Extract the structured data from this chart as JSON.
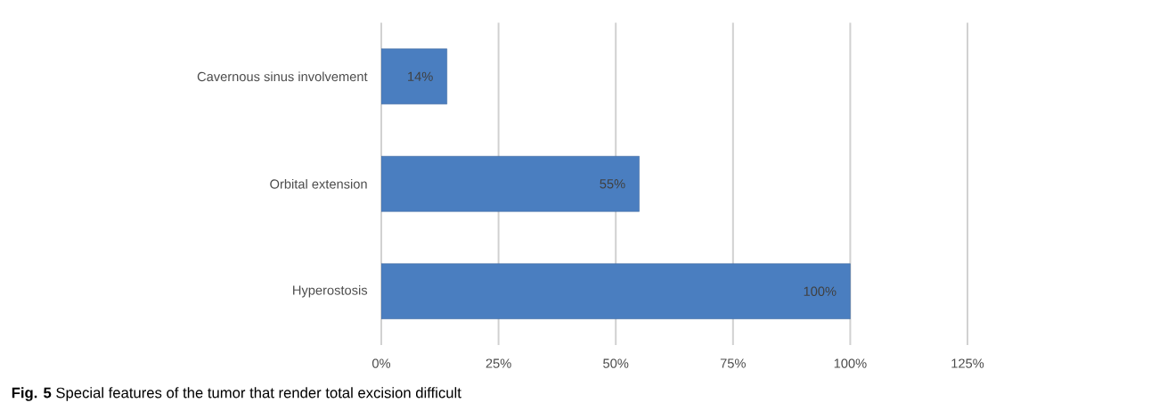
{
  "chart_data": {
    "type": "bar",
    "orientation": "horizontal",
    "categories": [
      "Cavernous sinus involvement",
      "Orbital extension",
      "Hyperostosis"
    ],
    "values": [
      14,
      55,
      100
    ],
    "value_labels": [
      "14%",
      "55%",
      "100%"
    ],
    "color": "#4a7ec0",
    "xlim": [
      0,
      125
    ],
    "xticks": [
      {
        "value": 0,
        "label": "0%"
      },
      {
        "value": 25,
        "label": "25%"
      },
      {
        "value": 50,
        "label": "50%"
      },
      {
        "value": 75,
        "label": "75%"
      },
      {
        "value": 100,
        "label": "100%"
      },
      {
        "value": 125,
        "label": "125%"
      }
    ],
    "grid": "x",
    "annotations": [
      "**Fig. 5** Special features of the tumor that render total excision difficult"
    ]
  }
}
